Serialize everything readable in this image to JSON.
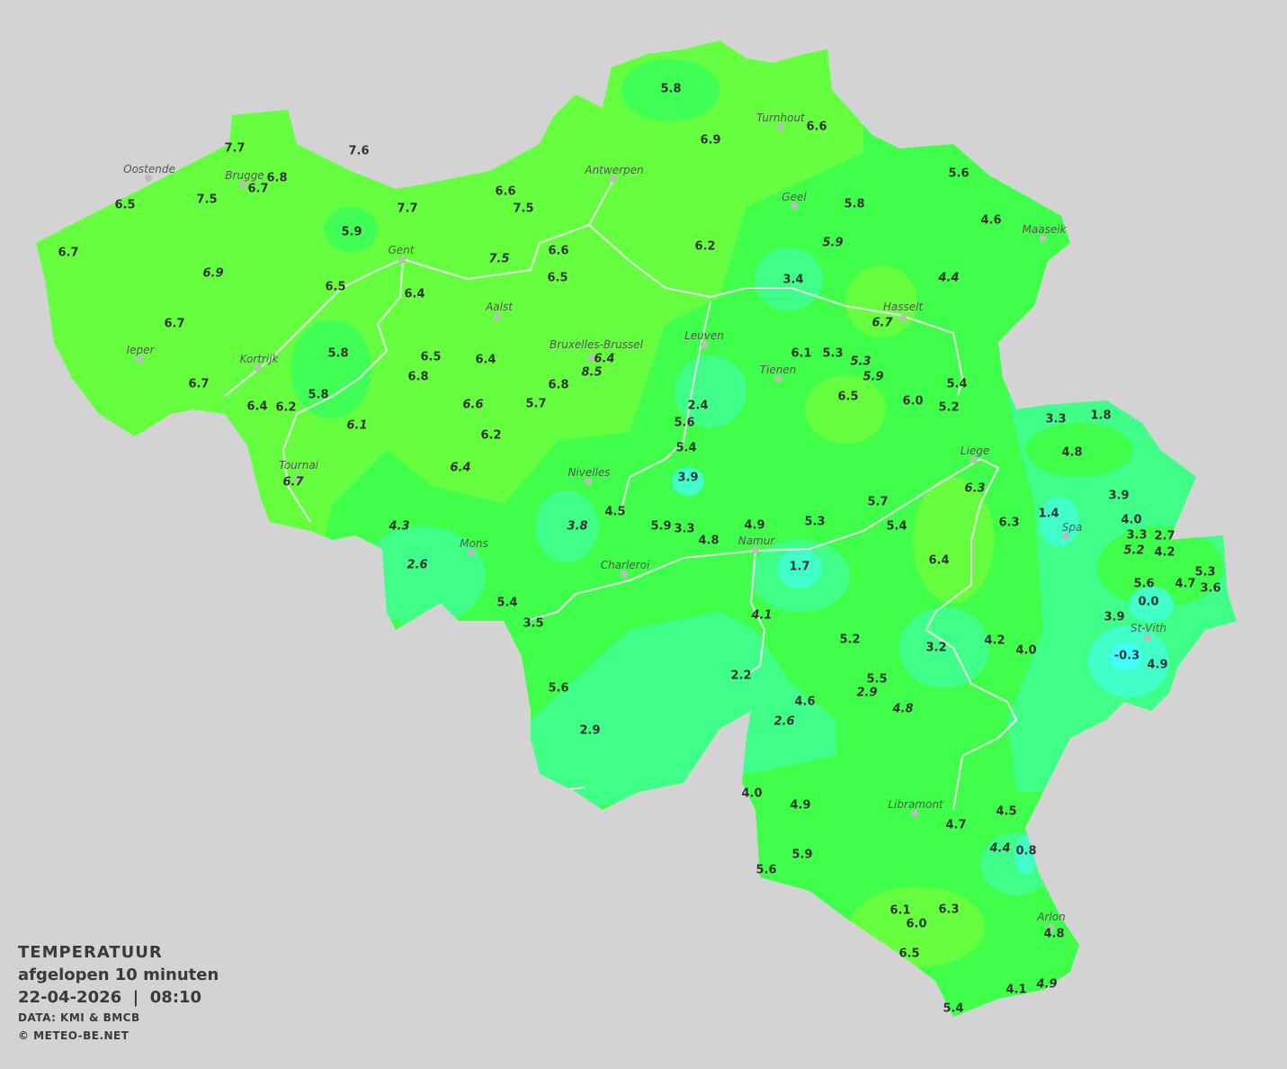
{
  "legend": {
    "title": "TEMPERATUUR",
    "period": "afgelopen 10 minuten",
    "datetime": "22-04-2026  |  08:10",
    "source": "DATA: KMI & BMCB",
    "copyright": "© METEO-BE.NET"
  },
  "colors": {
    "background": "#d3d3d3",
    "warm_green": "#66ff40",
    "green": "#40ff4a",
    "cool_green": "#40ff88",
    "aqua": "#40ffc8",
    "cyan": "#40ffff"
  },
  "cities": [
    "Turnhout",
    "Antwerpen",
    "Oostende",
    "Brugge",
    "Geel",
    "Maaseik",
    "Gent",
    "Aalst",
    "Hasselt",
    "Leuven",
    "Ieper",
    "Bruxelles-Brussel",
    "Kortrijk",
    "Tienen",
    "Liege",
    "Tournai",
    "Nivelles",
    "Spa",
    "Mons",
    "Namur",
    "Charleroi",
    "St-Vith",
    "Libramont",
    "Arlon"
  ],
  "stations": [
    "5.8",
    "6.9",
    "6.6",
    "7.7",
    "7.6",
    "6.8",
    "6.7",
    "6.5",
    "7.5",
    "7.7",
    "6.6",
    "7.5",
    "5.9",
    "6.7",
    "6.9",
    "6.5",
    "6.4",
    "7.5",
    "6.6",
    "6.5",
    "6.2",
    "5.6",
    "5.8",
    "4.6",
    "5.9",
    "3.4",
    "4.4",
    "6.7",
    "6.7",
    "5.8",
    "6.5",
    "6.4",
    "6.8",
    "6.4",
    "8.5",
    "6.8",
    "6.1",
    "5.3",
    "5.3",
    "5.9",
    "6.7",
    "5.8",
    "6.6",
    "5.7",
    "2.4",
    "6.5",
    "6.0",
    "5.4",
    "5.2",
    "6.4",
    "6.2",
    "6.1",
    "6.2",
    "5.6",
    "5.4",
    "3.3",
    "1.8",
    "4.8",
    "6.7",
    "6.4",
    "3.9",
    "6.3",
    "3.9",
    "4.3",
    "4.5",
    "3.8",
    "5.9",
    "3.3",
    "4.8",
    "4.9",
    "5.3",
    "5.7",
    "5.4",
    "6.3",
    "1.4",
    "4.0",
    "3.3",
    "2.7",
    "5.2",
    "4.2",
    "2.6",
    "1.7",
    "6.4",
    "5.6",
    "4.7",
    "5.3",
    "3.6",
    "0.0",
    "5.4",
    "3.5",
    "4.1",
    "3.9",
    "5.2",
    "3.2",
    "4.2",
    "4.0",
    "-0.3",
    "4.9",
    "2.2",
    "5.5",
    "2.9",
    "5.6",
    "4.6",
    "4.8",
    "2.9",
    "2.6",
    "4.0",
    "4.9",
    "4.5",
    "4.7",
    "4.4",
    "0.8",
    "5.9",
    "5.6",
    "6.1",
    "6.3",
    "6.0",
    "4.8",
    "6.5",
    "4.1",
    "4.9",
    "5.4"
  ]
}
